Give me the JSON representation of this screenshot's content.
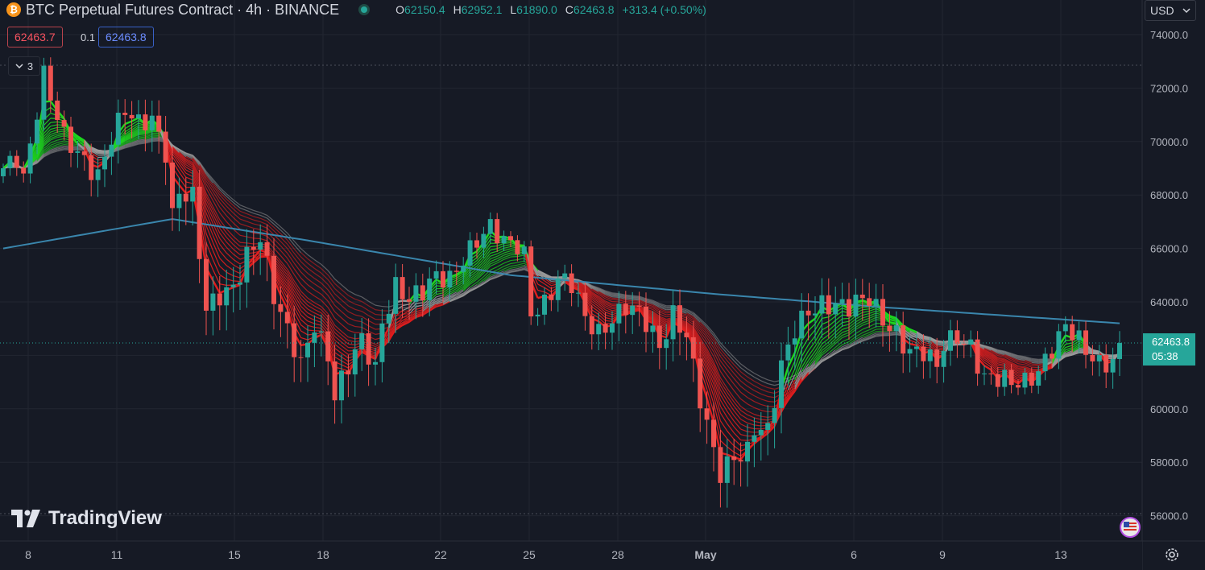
{
  "header": {
    "symbol_icon": "bitcoin-icon",
    "title": "BTC Perpetual Futures Contract · 4h · BINANCE",
    "status_color": "#26a69a",
    "ohlc": {
      "o_label": "O",
      "o": "62150.4",
      "h_label": "H",
      "h": "62952.1",
      "l_label": "L",
      "l": "61890.0",
      "c_label": "C",
      "c": "62463.8",
      "change": "+313.4 (+0.50%)"
    }
  },
  "trade": {
    "sell_price": "62463.7",
    "spread": "0.1",
    "buy_price": "62463.8"
  },
  "indicators": {
    "collapse_icon": "chevron-down-icon",
    "count": "3"
  },
  "currency": {
    "value": "USD",
    "icon": "chevron-down-icon"
  },
  "price_axis": {
    "labels": [
      "74000.0",
      "72000.0",
      "70000.0",
      "68000.0",
      "66000.0",
      "64000.0",
      "60000.0",
      "58000.0",
      "56000.0"
    ],
    "last_price": "62463.8",
    "countdown": "05:38",
    "last_price_color": "#26a69a"
  },
  "time_axis": {
    "labels": [
      "8",
      "11",
      "15",
      "18",
      "22",
      "25",
      "28",
      "May",
      "6",
      "9",
      "13"
    ]
  },
  "brand": {
    "logo_icon": "tradingview-logo-icon",
    "name": "TradingView"
  },
  "colors": {
    "background": "#161a25",
    "up": "#26a69a",
    "down": "#ef5350",
    "ribbon_bear": "#e01e1e",
    "ribbon_bull": "#1ed81e",
    "ribbon_neutral": "#9a9a9a",
    "slow_ma": "#3a86ad"
  },
  "chart_data": {
    "type": "candlestick",
    "ylim": [
      55500,
      75000
    ],
    "x_ticks": [
      "8",
      "11",
      "15",
      "18",
      "22",
      "25",
      "28",
      "May",
      "6",
      "9",
      "13"
    ],
    "close_anchors": [
      [
        0,
        69000
      ],
      [
        2,
        69600
      ],
      [
        3,
        68800
      ],
      [
        5,
        71200
      ],
      [
        6,
        72400
      ],
      [
        7,
        71500
      ],
      [
        9,
        70000
      ],
      [
        12,
        69400
      ],
      [
        14,
        68900
      ],
      [
        16,
        70200
      ],
      [
        18,
        71000
      ],
      [
        20,
        70500
      ],
      [
        22,
        70900
      ],
      [
        24,
        69800
      ],
      [
        25,
        67400
      ],
      [
        26,
        68200
      ],
      [
        28,
        67800
      ],
      [
        30,
        63500
      ],
      [
        32,
        64200
      ],
      [
        34,
        64700
      ],
      [
        36,
        65900
      ],
      [
        38,
        66400
      ],
      [
        40,
        64000
      ],
      [
        42,
        62800
      ],
      [
        44,
        61800
      ],
      [
        46,
        63400
      ],
      [
        48,
        62000
      ],
      [
        49,
        60400
      ],
      [
        51,
        61400
      ],
      [
        53,
        62500
      ],
      [
        55,
        61600
      ],
      [
        56,
        63400
      ],
      [
        58,
        64700
      ],
      [
        60,
        64000
      ],
      [
        62,
        64200
      ],
      [
        64,
        64900
      ],
      [
        66,
        65000
      ],
      [
        68,
        65800
      ],
      [
        70,
        66300
      ],
      [
        72,
        66600
      ],
      [
        74,
        66100
      ],
      [
        76,
        66200
      ],
      [
        77,
        65900
      ],
      [
        78,
        63800
      ],
      [
        80,
        64000
      ],
      [
        82,
        64700
      ],
      [
        84,
        64500
      ],
      [
        86,
        63400
      ],
      [
        88,
        63000
      ],
      [
        90,
        63500
      ],
      [
        92,
        63800
      ],
      [
        94,
        63400
      ],
      [
        96,
        62700
      ],
      [
        97,
        62300
      ],
      [
        99,
        63700
      ],
      [
        101,
        62900
      ],
      [
        103,
        60300
      ],
      [
        105,
        58200
      ],
      [
        106,
        57400
      ],
      [
        108,
        58200
      ],
      [
        110,
        58600
      ],
      [
        111,
        59500
      ],
      [
        113,
        59200
      ],
      [
        115,
        61400
      ],
      [
        117,
        62800
      ],
      [
        119,
        63700
      ],
      [
        121,
        64100
      ],
      [
        123,
        64000
      ],
      [
        125,
        63700
      ],
      [
        127,
        63900
      ],
      [
        128,
        64000
      ],
      [
        130,
        63400
      ],
      [
        132,
        63000
      ],
      [
        134,
        62200
      ],
      [
        136,
        62000
      ],
      [
        138,
        61400
      ],
      [
        139,
        62300
      ],
      [
        141,
        62800
      ],
      [
        143,
        62500
      ],
      [
        145,
        61200
      ],
      [
        147,
        61000
      ],
      [
        149,
        60800
      ],
      [
        151,
        61000
      ],
      [
        153,
        61600
      ],
      [
        155,
        62400
      ],
      [
        157,
        63000
      ],
      [
        158,
        62700
      ],
      [
        160,
        62000
      ],
      [
        162,
        61700
      ],
      [
        164,
        62000
      ],
      [
        165,
        62463.8
      ]
    ],
    "slow_ma": [
      [
        0,
        66000
      ],
      [
        25,
        67100
      ],
      [
        45,
        66300
      ],
      [
        75,
        65000
      ],
      [
        105,
        64300
      ],
      [
        130,
        63800
      ],
      [
        165,
        63200
      ]
    ]
  }
}
